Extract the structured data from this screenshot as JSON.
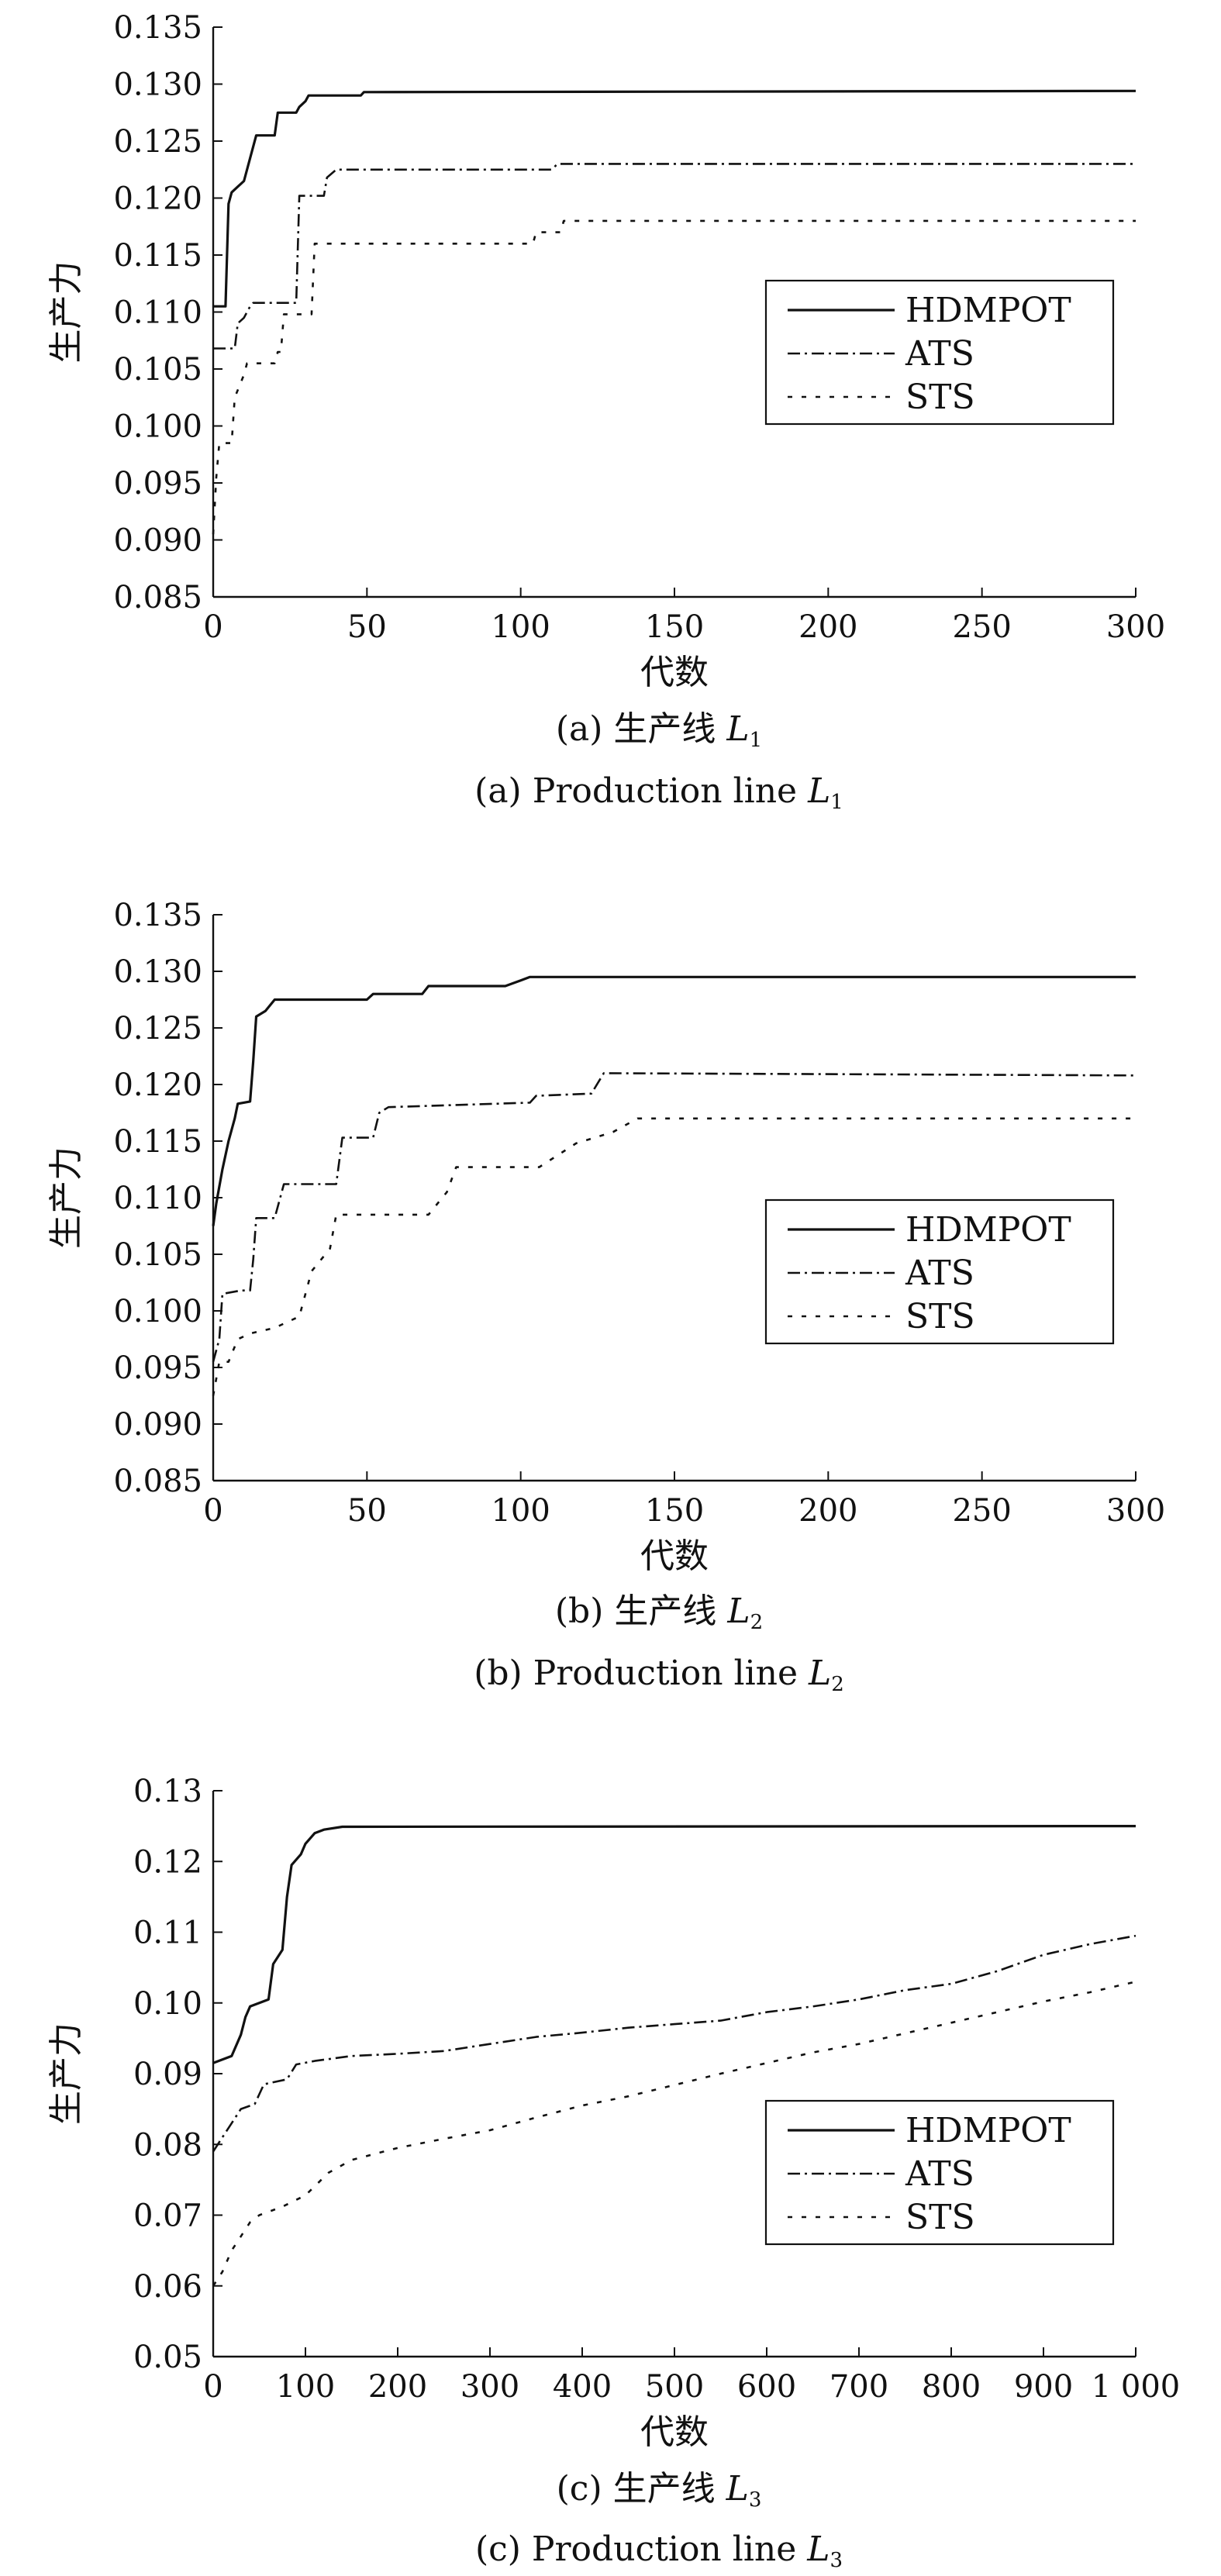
{
  "chart_data": [
    {
      "type": "line",
      "caption_cn": "(a) 生产线 L₁",
      "caption_en": "(a) Production line L₁",
      "xlabel": "代数",
      "ylabel": "生产力",
      "xlim": [
        0,
        300
      ],
      "ylim": [
        0.085,
        0.135
      ],
      "xticks": [
        0,
        50,
        100,
        150,
        200,
        250,
        300
      ],
      "yticks": [
        0.085,
        0.09,
        0.095,
        0.1,
        0.105,
        0.11,
        0.115,
        0.12,
        0.125,
        0.13,
        0.135
      ],
      "xtick_labels": [
        "0",
        "50",
        "100",
        "150",
        "200",
        "250",
        "300"
      ],
      "ytick_labels": [
        "0.085",
        "0.090",
        "0.095",
        "0.100",
        "0.105",
        "0.110",
        "0.115",
        "0.120",
        "0.125",
        "0.130",
        "0.135"
      ],
      "legend_position": "middle-right",
      "series": [
        {
          "name": "HDMPOT",
          "style": "solid",
          "points": [
            [
              0,
              0.1105
            ],
            [
              4,
              0.1105
            ],
            [
              5,
              0.1195
            ],
            [
              6,
              0.1205
            ],
            [
              8,
              0.121
            ],
            [
              10,
              0.1215
            ],
            [
              12,
              0.1235
            ],
            [
              14,
              0.1255
            ],
            [
              20,
              0.1255
            ],
            [
              21,
              0.1275
            ],
            [
              27,
              0.1275
            ],
            [
              28,
              0.128
            ],
            [
              30,
              0.1285
            ],
            [
              31,
              0.129
            ],
            [
              48,
              0.129
            ],
            [
              49,
              0.1293
            ],
            [
              300,
              0.1294
            ]
          ]
        },
        {
          "name": "ATS",
          "style": "dashdot",
          "points": [
            [
              0,
              0.1068
            ],
            [
              7,
              0.1068
            ],
            [
              8,
              0.109
            ],
            [
              10,
              0.1095
            ],
            [
              12,
              0.1105
            ],
            [
              13,
              0.1108
            ],
            [
              27,
              0.1108
            ],
            [
              28,
              0.1202
            ],
            [
              36,
              0.1202
            ],
            [
              37,
              0.1218
            ],
            [
              40,
              0.1225
            ],
            [
              110,
              0.1225
            ],
            [
              112,
              0.123
            ],
            [
              300,
              0.123
            ]
          ]
        },
        {
          "name": "STS",
          "style": "dotted",
          "points": [
            [
              0,
              0.0905
            ],
            [
              1,
              0.0955
            ],
            [
              2,
              0.0985
            ],
            [
              6,
              0.0985
            ],
            [
              7,
              0.1025
            ],
            [
              10,
              0.1045
            ],
            [
              11,
              0.1055
            ],
            [
              20,
              0.1055
            ],
            [
              21,
              0.1065
            ],
            [
              22,
              0.1065
            ],
            [
              23,
              0.1098
            ],
            [
              32,
              0.1098
            ],
            [
              33,
              0.116
            ],
            [
              104,
              0.116
            ],
            [
              105,
              0.117
            ],
            [
              113,
              0.117
            ],
            [
              114,
              0.118
            ],
            [
              300,
              0.118
            ]
          ]
        }
      ]
    },
    {
      "type": "line",
      "caption_cn": "(b) 生产线 L₂",
      "caption_en": "(b) Production line L₂",
      "xlabel": "代数",
      "ylabel": "生产力",
      "xlim": [
        0,
        300
      ],
      "ylim": [
        0.085,
        0.135
      ],
      "xticks": [
        0,
        50,
        100,
        150,
        200,
        250,
        300
      ],
      "yticks": [
        0.085,
        0.09,
        0.095,
        0.1,
        0.105,
        0.11,
        0.115,
        0.12,
        0.125,
        0.13,
        0.135
      ],
      "xtick_labels": [
        "0",
        "50",
        "100",
        "150",
        "200",
        "250",
        "300"
      ],
      "ytick_labels": [
        "0.085",
        "0.090",
        "0.095",
        "0.100",
        "0.105",
        "0.110",
        "0.115",
        "0.120",
        "0.125",
        "0.130",
        "0.135"
      ],
      "legend_position": "middle-right",
      "series": [
        {
          "name": "HDMPOT",
          "style": "solid",
          "points": [
            [
              0,
              0.1075
            ],
            [
              1,
              0.1095
            ],
            [
              3,
              0.1125
            ],
            [
              5,
              0.115
            ],
            [
              7,
              0.117
            ],
            [
              8,
              0.1183
            ],
            [
              12,
              0.1185
            ],
            [
              13,
              0.122
            ],
            [
              14,
              0.126
            ],
            [
              17,
              0.1265
            ],
            [
              20,
              0.1275
            ],
            [
              50,
              0.1275
            ],
            [
              52,
              0.128
            ],
            [
              68,
              0.128
            ],
            [
              70,
              0.1287
            ],
            [
              95,
              0.1287
            ],
            [
              100,
              0.1292
            ],
            [
              103,
              0.1295
            ],
            [
              300,
              0.1295
            ]
          ]
        },
        {
          "name": "ATS",
          "style": "dashdot",
          "points": [
            [
              0,
              0.0955
            ],
            [
              2,
              0.0975
            ],
            [
              3,
              0.1015
            ],
            [
              9,
              0.1018
            ],
            [
              12,
              0.1018
            ],
            [
              13,
              0.1045
            ],
            [
              14,
              0.1082
            ],
            [
              20,
              0.1082
            ],
            [
              23,
              0.1112
            ],
            [
              40,
              0.1112
            ],
            [
              42,
              0.1153
            ],
            [
              52,
              0.1153
            ],
            [
              54,
              0.1175
            ],
            [
              57,
              0.118
            ],
            [
              80,
              0.1182
            ],
            [
              103,
              0.1184
            ],
            [
              105,
              0.119
            ],
            [
              123,
              0.1192
            ],
            [
              127,
              0.121
            ],
            [
              300,
              0.1208
            ]
          ]
        },
        {
          "name": "STS",
          "style": "dotted",
          "points": [
            [
              0,
              0.0925
            ],
            [
              2,
              0.0955
            ],
            [
              5,
              0.0955
            ],
            [
              8,
              0.0975
            ],
            [
              12,
              0.098
            ],
            [
              20,
              0.0985
            ],
            [
              28,
              0.0995
            ],
            [
              32,
              0.1035
            ],
            [
              38,
              0.1055
            ],
            [
              40,
              0.1085
            ],
            [
              70,
              0.1085
            ],
            [
              76,
              0.1105
            ],
            [
              79,
              0.1127
            ],
            [
              106,
              0.1127
            ],
            [
              118,
              0.1148
            ],
            [
              130,
              0.1158
            ],
            [
              138,
              0.117
            ],
            [
              300,
              0.117
            ]
          ]
        }
      ]
    },
    {
      "type": "line",
      "caption_cn": "(c) 生产线 L₃",
      "caption_en": "(c) Production line L₃",
      "xlabel": "代数",
      "ylabel": "生产力",
      "xlim": [
        0,
        1000
      ],
      "ylim": [
        0.05,
        0.13
      ],
      "xticks": [
        0,
        100,
        200,
        300,
        400,
        500,
        600,
        700,
        800,
        900,
        1000
      ],
      "yticks": [
        0.05,
        0.06,
        0.07,
        0.08,
        0.09,
        0.1,
        0.11,
        0.12,
        0.13
      ],
      "xtick_labels": [
        "0",
        "100",
        "200",
        "300",
        "400",
        "500",
        "600",
        "700",
        "800",
        "900",
        "1 000"
      ],
      "ytick_labels": [
        "0.05",
        "0.06",
        "0.07",
        "0.08",
        "0.09",
        "0.10",
        "0.11",
        "0.12",
        "0.13"
      ],
      "legend_position": "lower-right",
      "series": [
        {
          "name": "HDMPOT",
          "style": "solid",
          "points": [
            [
              0,
              0.0915
            ],
            [
              10,
              0.092
            ],
            [
              20,
              0.0925
            ],
            [
              30,
              0.0955
            ],
            [
              35,
              0.098
            ],
            [
              40,
              0.0995
            ],
            [
              50,
              0.1
            ],
            [
              60,
              0.1005
            ],
            [
              65,
              0.1055
            ],
            [
              75,
              0.1075
            ],
            [
              80,
              0.115
            ],
            [
              85,
              0.1195
            ],
            [
              95,
              0.121
            ],
            [
              100,
              0.1225
            ],
            [
              110,
              0.124
            ],
            [
              120,
              0.1245
            ],
            [
              140,
              0.1249
            ],
            [
              1000,
              0.125
            ]
          ]
        },
        {
          "name": "ATS",
          "style": "dashdot",
          "points": [
            [
              0,
              0.079
            ],
            [
              10,
              0.081
            ],
            [
              20,
              0.083
            ],
            [
              30,
              0.085
            ],
            [
              45,
              0.0857
            ],
            [
              55,
              0.0885
            ],
            [
              80,
              0.0892
            ],
            [
              90,
              0.0913
            ],
            [
              110,
              0.0918
            ],
            [
              150,
              0.0925
            ],
            [
              200,
              0.0928
            ],
            [
              250,
              0.0932
            ],
            [
              300,
              0.0942
            ],
            [
              350,
              0.0952
            ],
            [
              400,
              0.0958
            ],
            [
              450,
              0.0965
            ],
            [
              500,
              0.097
            ],
            [
              550,
              0.0975
            ],
            [
              600,
              0.0987
            ],
            [
              650,
              0.0995
            ],
            [
              700,
              0.1005
            ],
            [
              750,
              0.1018
            ],
            [
              800,
              0.1027
            ],
            [
              850,
              0.1045
            ],
            [
              900,
              0.1068
            ],
            [
              950,
              0.1083
            ],
            [
              1000,
              0.1095
            ]
          ]
        },
        {
          "name": "STS",
          "style": "dotted",
          "points": [
            [
              0,
              0.06
            ],
            [
              10,
              0.062
            ],
            [
              20,
              0.065
            ],
            [
              30,
              0.067
            ],
            [
              40,
              0.069
            ],
            [
              50,
              0.07
            ],
            [
              75,
              0.0712
            ],
            [
              100,
              0.0728
            ],
            [
              125,
              0.076
            ],
            [
              150,
              0.0778
            ],
            [
              200,
              0.0795
            ],
            [
              250,
              0.0808
            ],
            [
              300,
              0.082
            ],
            [
              350,
              0.0838
            ],
            [
              400,
              0.0855
            ],
            [
              450,
              0.0868
            ],
            [
              500,
              0.0884
            ],
            [
              550,
              0.09
            ],
            [
              600,
              0.0915
            ],
            [
              650,
              0.093
            ],
            [
              700,
              0.0942
            ],
            [
              750,
              0.0957
            ],
            [
              800,
              0.0972
            ],
            [
              850,
              0.0987
            ],
            [
              900,
              0.1002
            ],
            [
              950,
              0.1015
            ],
            [
              1000,
              0.103
            ]
          ]
        }
      ]
    }
  ]
}
